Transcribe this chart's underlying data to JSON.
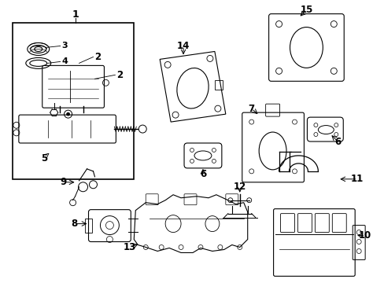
{
  "background_color": "#ffffff",
  "fig_width": 4.89,
  "fig_height": 3.6,
  "dpi": 100,
  "line_color": "#000000",
  "gray_color": "#888888",
  "light_gray": "#cccccc"
}
